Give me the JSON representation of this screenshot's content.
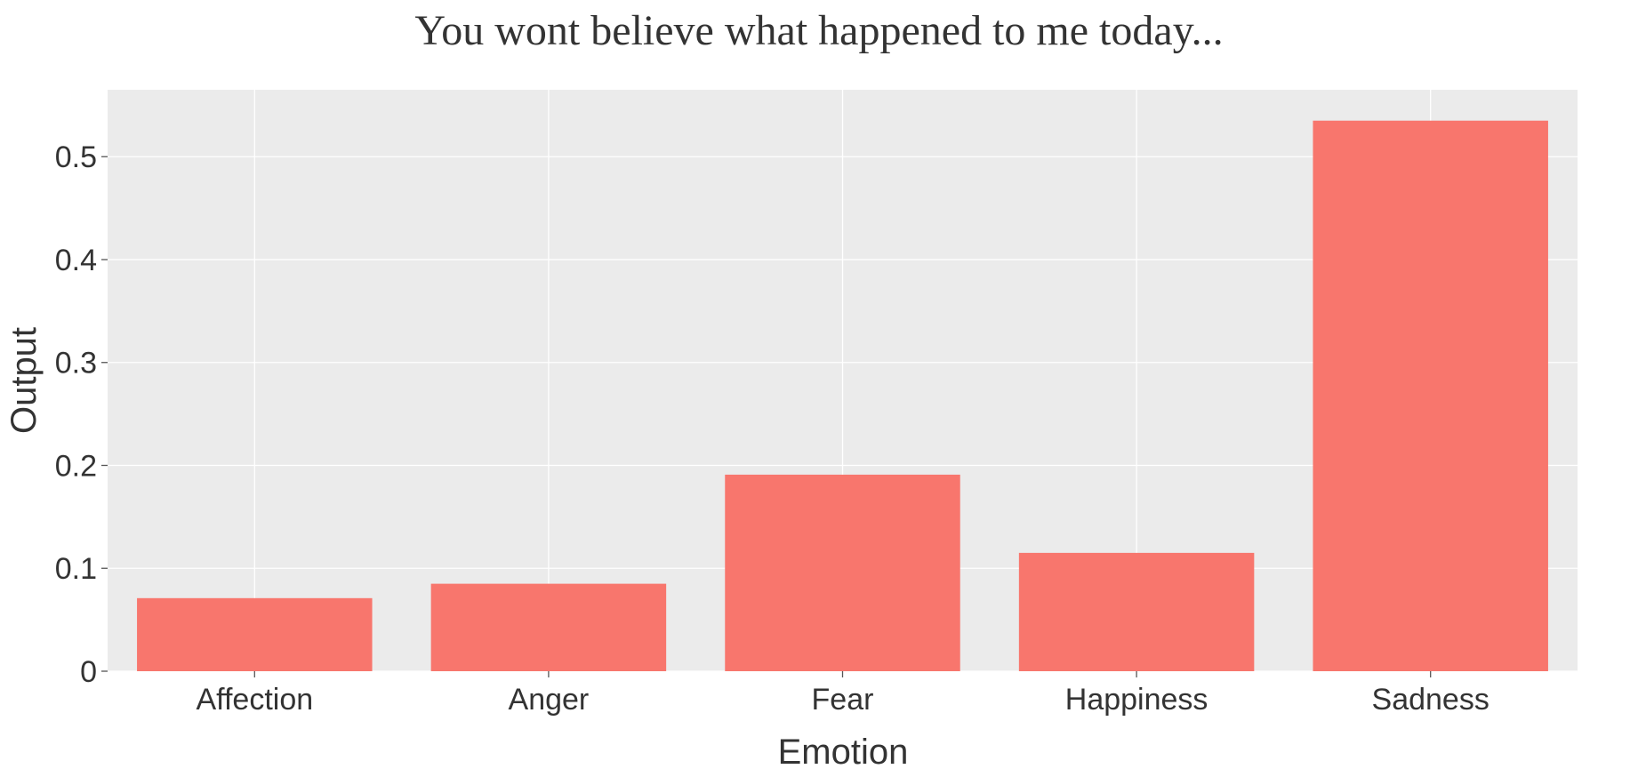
{
  "chart_data": {
    "type": "bar",
    "title": "You wont believe what happened to me today...",
    "xlabel": "Emotion",
    "ylabel": "Output",
    "categories": [
      "Affection",
      "Anger",
      "Fear",
      "Happiness",
      "Sadness"
    ],
    "values": [
      0.071,
      0.085,
      0.191,
      0.115,
      0.535
    ],
    "ylim": [
      0,
      0.565
    ],
    "yticks": [
      0,
      0.1,
      0.2,
      0.3,
      0.4,
      0.5
    ],
    "ytick_labels": [
      "0",
      "0.1",
      "0.2",
      "0.3",
      "0.4",
      "0.5"
    ],
    "grid": true,
    "bar_color": "#f8766d",
    "panel_color": "#ebebeb"
  }
}
